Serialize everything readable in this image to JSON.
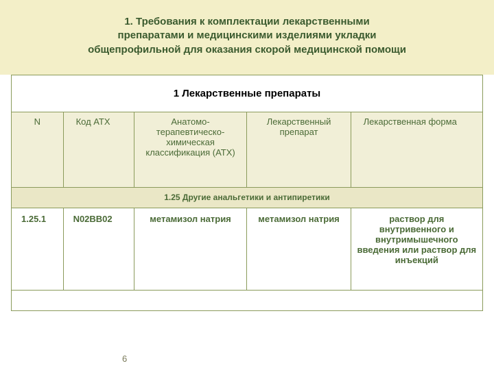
{
  "colors": {
    "header_bg": "#f3efc8",
    "title_color": "#3a5a2e",
    "section_bg": "#ffffff",
    "section_text": "#000000",
    "colhead_bg": "#f1efd7",
    "colhead_text": "#4a6a36",
    "subhead_bg": "#eae7c6",
    "subhead_text": "#4a6a36",
    "data_bg": "#ffffff",
    "data_text": "#4a6a36",
    "border": "#8a9a5a",
    "page_num_color": "#7a7a5a"
  },
  "fonts": {
    "title_size": 15,
    "section_size": 15,
    "colhead_size": 13,
    "subhead_size": 12,
    "data_size": 13,
    "page_num_size": 13
  },
  "title_lines": [
    "1. Требования к комплектации лекарственными",
    "препаратами и медицинскими изделиями укладки",
    "общепрофильной  для оказания скорой медицинской помощи"
  ],
  "table": {
    "col_widths_pct": [
      11,
      15,
      24,
      22,
      28
    ],
    "section_title": "1 Лекарственные препараты",
    "columns": [
      "N",
      "Код АТХ",
      "Анатомо-терапевтическо-химическая классификация (АТХ)",
      "Лекарственный препарат",
      "Лекарственная форма"
    ],
    "subheader": "1.25  Другие анальгетики и антипиретики",
    "rows": [
      {
        "n": "1.25.1",
        "atc": "N02BB02",
        "classification": "метамизол натрия",
        "drug": "метамизол натрия",
        "form": "раствор для внутривенного и внутримышечного введения или раствор для инъекций"
      }
    ]
  },
  "page_number": "6"
}
